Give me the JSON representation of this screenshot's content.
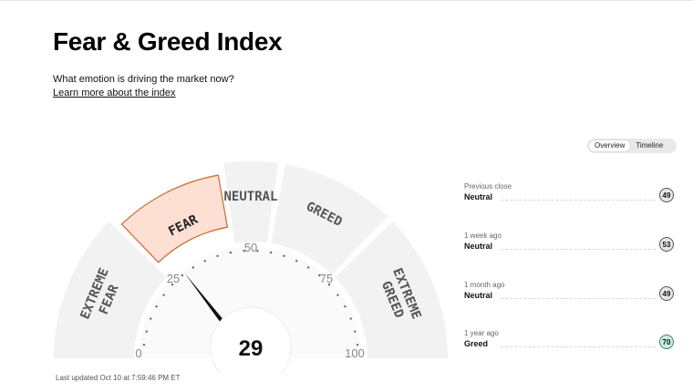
{
  "header": {
    "title": "Fear & Greed Index",
    "subtitle": "What emotion is driving the market now?",
    "learn_more": "Learn more about the index"
  },
  "view_toggle": {
    "options": [
      "Overview",
      "Timeline"
    ],
    "selected": "Overview"
  },
  "gauge": {
    "value": 29,
    "rating": "Fear",
    "segments": [
      {
        "label_lines": [
          "EXTREME",
          "FEAR"
        ],
        "range": [
          0,
          25
        ]
      },
      {
        "label_lines": [
          "FEAR"
        ],
        "range": [
          25,
          45
        ],
        "active": true
      },
      {
        "label_lines": [
          "NEUTRAL"
        ],
        "range": [
          45,
          55
        ]
      },
      {
        "label_lines": [
          "GREED"
        ],
        "range": [
          55,
          75
        ]
      },
      {
        "label_lines": [
          "EXTREME",
          "GREED"
        ],
        "range": [
          75,
          100
        ]
      }
    ],
    "tick_labels": [
      "0",
      "25",
      "50",
      "75",
      "100"
    ],
    "colors": {
      "segment": "#f2f2f2",
      "active_fill": "#fddfd3",
      "active_stroke": "#c96b2c",
      "needle": "#111111",
      "dial": "#fafafa"
    }
  },
  "last_updated": "Last updated Oct 10 at 7:59:46 PM ET",
  "history": [
    {
      "period": "Previous close",
      "rating": "Neutral",
      "score": "49"
    },
    {
      "period": "1 week ago",
      "rating": "Neutral",
      "score": "53"
    },
    {
      "period": "1 month ago",
      "rating": "Neutral",
      "score": "49"
    },
    {
      "period": "1 year ago",
      "rating": "Greed",
      "score": "70",
      "accent": "#c8eedf"
    }
  ]
}
